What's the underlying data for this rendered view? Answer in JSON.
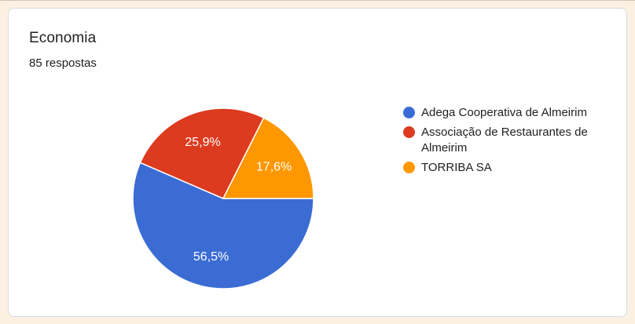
{
  "page": {
    "background_color": "#FAF1E2",
    "top_edge_color": "#CFC8B8"
  },
  "card": {
    "background_color": "#FFFFFF",
    "border_color": "#DADCE0"
  },
  "header": {
    "title": "Economia",
    "subtitle": "85 respostas"
  },
  "chart_data": {
    "type": "pie",
    "title": "Economia",
    "subtitle": "85 respostas",
    "unit": "%",
    "start_angle_deg": 0,
    "direction": "clockwise",
    "legend_position": "right",
    "slice_label_color": "#FFFFFF",
    "slice_border_color": "#FFFFFF",
    "slices": [
      {
        "label": "Adega Cooperativa de Almeirim",
        "value": 56.5,
        "display": "56,5%",
        "color": "#3B6CD4"
      },
      {
        "label": "Associação de Restaurantes de Almeirim",
        "value": 25.9,
        "display": "25,9%",
        "color": "#DC3B1F"
      },
      {
        "label": "TORRIBA SA",
        "value": 17.6,
        "display": "17,6%",
        "color": "#FF9800"
      }
    ]
  }
}
